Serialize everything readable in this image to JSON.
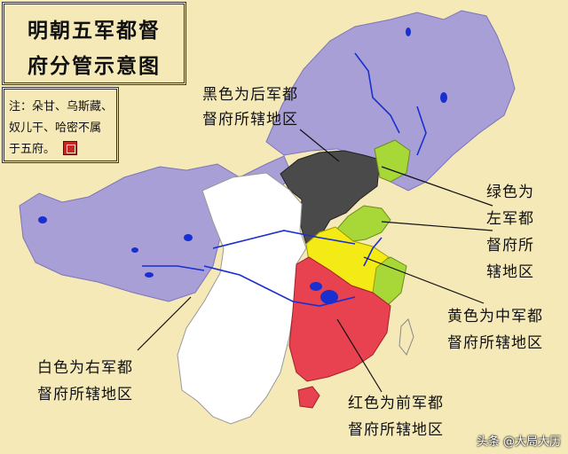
{
  "title": {
    "line1": "明朝五军都督",
    "line2": "府分管示意图"
  },
  "note": {
    "line1": "注：朵甘、乌斯藏、",
    "line2": "奴儿干、哈密不属",
    "line3": "于五府。"
  },
  "labels": {
    "hou": {
      "line1": "黑色为后军都",
      "line2": "督府所辖地区"
    },
    "zuo": {
      "line1": "绿色为",
      "line2": "左军都",
      "line3": "督府所",
      "line4": "辖地区"
    },
    "zhong": {
      "line1": "黄色为中军都",
      "line2": "督府所辖地区"
    },
    "you": {
      "line1": "白色为右军都",
      "line2": "督府所辖地区"
    },
    "qian": {
      "line1": "红色为前军都",
      "line2": "督府所辖地区"
    }
  },
  "watermark": "头条 @大局大历",
  "colors": {
    "background": "#f5e9b8",
    "frontier": "#a79fd6",
    "hou_black": "#4a4a4a",
    "zuo_green": "#a8d838",
    "zhong_yellow": "#f4ea16",
    "you_white": "#ffffff",
    "qian_red": "#e8414f",
    "water": "#1a2fd0",
    "sea": "#f5e9b8"
  }
}
